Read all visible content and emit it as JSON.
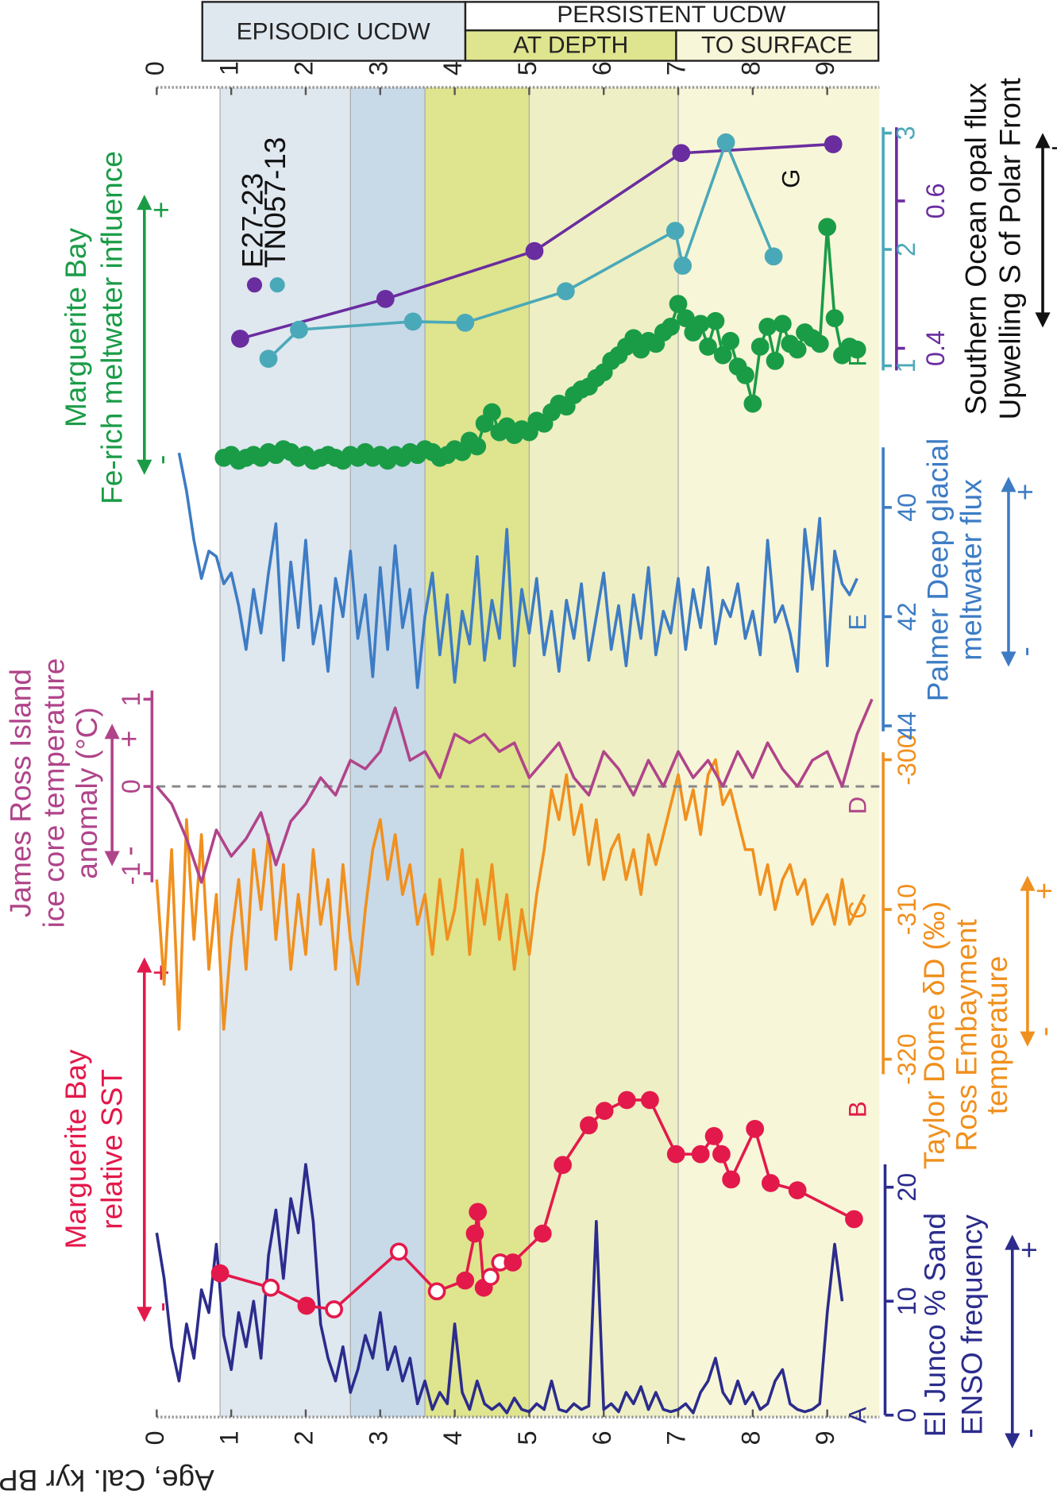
{
  "age_axis": {
    "label": "Age, Cal. kyr BP",
    "xlim": [
      0,
      9.7
    ],
    "xticks": [
      0,
      1,
      2,
      3,
      4,
      5,
      6,
      7,
      8,
      9
    ]
  },
  "header": {
    "episodic": "EPISODIC UCDW",
    "persistent": "PERSISTENT UCDW",
    "at_depth": "AT DEPTH",
    "to_surface": "TO SURFACE"
  },
  "phases": [
    {
      "start": 0.85,
      "end": 2.6,
      "color": "#dfe7ef"
    },
    {
      "start": 2.6,
      "end": 3.6,
      "color": "#c8d9e8"
    },
    {
      "start": 3.6,
      "end": 5.0,
      "color": "#dfe48e"
    },
    {
      "start": 5.0,
      "end": 7.0,
      "color": "#eeefc4"
    },
    {
      "start": 7.0,
      "end": 9.7,
      "color": "#f8f6d8"
    }
  ],
  "chart_data": [
    {
      "type": "line",
      "panel": "A",
      "ylabel": [
        "El Junco % Sand",
        "ENSO frequency"
      ],
      "signs": [
        "-",
        "+"
      ],
      "color": "#2b2c8c",
      "ylim": [
        0,
        22
      ],
      "yticks": [
        0,
        10,
        20
      ],
      "x": [
        0.0,
        0.1,
        0.2,
        0.3,
        0.4,
        0.5,
        0.6,
        0.7,
        0.8,
        0.9,
        1.0,
        1.1,
        1.2,
        1.3,
        1.4,
        1.5,
        1.6,
        1.7,
        1.8,
        1.9,
        2.0,
        2.1,
        2.2,
        2.3,
        2.4,
        2.5,
        2.6,
        2.7,
        2.8,
        2.9,
        3.0,
        3.1,
        3.2,
        3.3,
        3.4,
        3.5,
        3.6,
        3.7,
        3.8,
        3.9,
        4.0,
        4.1,
        4.2,
        4.3,
        4.4,
        4.5,
        4.6,
        4.7,
        4.8,
        4.9,
        5.0,
        5.1,
        5.2,
        5.3,
        5.4,
        5.5,
        5.6,
        5.7,
        5.8,
        5.9,
        6.0,
        6.1,
        6.2,
        6.3,
        6.4,
        6.5,
        6.6,
        6.7,
        6.8,
        6.9,
        7.0,
        7.1,
        7.2,
        7.3,
        7.4,
        7.5,
        7.6,
        7.7,
        7.8,
        7.9,
        8.0,
        8.1,
        8.2,
        8.3,
        8.4,
        8.5,
        8.6,
        8.7,
        8.8,
        8.9,
        9.0,
        9.1,
        9.2
      ],
      "values": [
        16,
        12,
        6,
        3,
        8,
        5,
        11,
        9,
        15,
        7,
        4,
        9,
        6,
        10,
        5,
        14,
        18,
        12,
        19,
        16,
        22,
        17,
        8,
        5,
        3,
        6,
        2,
        4,
        7,
        5,
        9,
        4,
        6,
        3,
        5,
        1,
        3,
        0.5,
        2,
        1,
        8,
        2,
        0.5,
        3,
        1,
        0.5,
        1,
        0.2,
        1.5,
        0.5,
        0.3,
        1,
        0.5,
        3,
        0.5,
        0.3,
        1,
        0.5,
        0.8,
        17,
        0.5,
        1,
        0.3,
        2,
        1,
        2.5,
        0.5,
        2,
        0.5,
        0.3,
        0.5,
        1,
        0.2,
        2,
        3,
        5,
        2,
        1,
        3,
        1,
        2,
        0.5,
        1,
        3,
        4,
        1,
        0.5,
        0.3,
        0.5,
        1,
        9,
        15,
        10
      ]
    },
    {
      "type": "line",
      "panel": "B",
      "ylabel": [
        "Marguerite Bay",
        "relative SST"
      ],
      "signs": [
        "-",
        "+"
      ],
      "color": "#e3194b",
      "markers": true,
      "ylim": [
        0,
        1
      ],
      "x": [
        0.85,
        1.53,
        2.01,
        2.38,
        3.25,
        3.76,
        4.14,
        4.27,
        4.31,
        4.39,
        4.48,
        4.61,
        4.78,
        5.18,
        5.45,
        5.8,
        6.01,
        6.31,
        6.62,
        6.97,
        7.3,
        7.48,
        7.58,
        7.71,
        8.03,
        8.24,
        8.6,
        9.36
      ],
      "values": [
        0.13,
        0.09,
        0.04,
        0.03,
        0.19,
        0.08,
        0.11,
        0.24,
        0.3,
        0.09,
        0.12,
        0.16,
        0.16,
        0.24,
        0.43,
        0.54,
        0.58,
        0.61,
        0.61,
        0.46,
        0.46,
        0.51,
        0.46,
        0.39,
        0.53,
        0.38,
        0.36,
        0.28
      ],
      "hollow": [
        false,
        true,
        false,
        true,
        true,
        true,
        false,
        false,
        false,
        false,
        true,
        true,
        false,
        false,
        false,
        false,
        false,
        false,
        false,
        false,
        false,
        false,
        false,
        false,
        false,
        false,
        false,
        false
      ]
    },
    {
      "type": "line",
      "panel": "C",
      "ylabel": [
        "Taylor Dome δD (‰)",
        "Ross Embayment",
        "temperature"
      ],
      "signs": [
        "-",
        "+"
      ],
      "color": "#f0901e",
      "ylim": [
        -321,
        -299.5
      ],
      "yticks": [
        -320,
        -310,
        -300
      ],
      "x": [
        0.0,
        0.1,
        0.2,
        0.3,
        0.4,
        0.5,
        0.6,
        0.7,
        0.8,
        0.9,
        1.0,
        1.1,
        1.2,
        1.3,
        1.4,
        1.5,
        1.6,
        1.7,
        1.8,
        1.9,
        2.0,
        2.1,
        2.2,
        2.3,
        2.4,
        2.5,
        2.6,
        2.7,
        2.8,
        2.9,
        3.0,
        3.1,
        3.2,
        3.3,
        3.4,
        3.5,
        3.6,
        3.7,
        3.8,
        3.9,
        4.0,
        4.1,
        4.2,
        4.3,
        4.4,
        4.5,
        4.6,
        4.7,
        4.8,
        4.9,
        5.0,
        5.1,
        5.2,
        5.3,
        5.4,
        5.5,
        5.6,
        5.7,
        5.8,
        5.9,
        6.0,
        6.1,
        6.2,
        6.3,
        6.4,
        6.5,
        6.6,
        6.7,
        6.8,
        6.9,
        7.0,
        7.1,
        7.2,
        7.3,
        7.4,
        7.5,
        7.6,
        7.7,
        7.8,
        7.9,
        8.0,
        8.1,
        8.2,
        8.3,
        8.4,
        8.5,
        8.6,
        8.7,
        8.8,
        8.9,
        9.0,
        9.1,
        9.2,
        9.3,
        9.4,
        9.5
      ],
      "values": [
        -308,
        -315,
        -306,
        -318,
        -304,
        -312,
        -305,
        -314,
        -309,
        -318,
        -312,
        -308,
        -314,
        -306,
        -310,
        -305,
        -312,
        -307,
        -314,
        -309,
        -313,
        -306,
        -311,
        -308,
        -314,
        -307,
        -312,
        -315,
        -310,
        -306,
        -304,
        -308,
        -305,
        -309,
        -307,
        -311,
        -309,
        -313,
        -308,
        -312,
        -310,
        -306,
        -313,
        -308,
        -311,
        -307,
        -312,
        -309,
        -314,
        -310,
        -313,
        -309,
        -306,
        -302,
        -304,
        -301,
        -305,
        -303,
        -307,
        -304,
        -308,
        -306,
        -305,
        -308,
        -306,
        -309,
        -305,
        -307,
        -305,
        -303,
        -301,
        -304,
        -302,
        -305,
        -301,
        -300,
        -303,
        -302,
        -304,
        -306,
        -306,
        -309,
        -307,
        -310,
        -308,
        -307,
        -309,
        -308,
        -311,
        -310,
        -309,
        -311,
        -308,
        -311,
        -310,
        -309
      ]
    },
    {
      "type": "line",
      "panel": "D",
      "ylabel": [
        "James Ross Island",
        "ice core temperature",
        "anomaly (°C)"
      ],
      "signs": [
        "-",
        "+"
      ],
      "color": "#b0448a",
      "ylim": [
        -1.1,
        1.1
      ],
      "yticks": [
        -1,
        0,
        1
      ],
      "zero_line": true,
      "x": [
        0.0,
        0.2,
        0.4,
        0.6,
        0.8,
        1.0,
        1.2,
        1.4,
        1.6,
        1.8,
        2.0,
        2.2,
        2.4,
        2.6,
        2.8,
        3.0,
        3.2,
        3.4,
        3.6,
        3.8,
        4.0,
        4.2,
        4.4,
        4.6,
        4.8,
        5.0,
        5.2,
        5.4,
        5.6,
        5.8,
        6.0,
        6.2,
        6.4,
        6.6,
        6.8,
        7.0,
        7.2,
        7.4,
        7.6,
        7.8,
        8.0,
        8.2,
        8.4,
        8.6,
        8.8,
        9.0,
        9.2,
        9.4,
        9.6
      ],
      "values": [
        0,
        -0.2,
        -0.6,
        -1.1,
        -0.5,
        -0.8,
        -0.6,
        -0.3,
        -0.9,
        -0.4,
        -0.2,
        0.1,
        -0.1,
        0.3,
        0.2,
        0.4,
        0.9,
        0.3,
        0.4,
        0.1,
        0.6,
        0.5,
        0.6,
        0.4,
        0.5,
        0.1,
        0.3,
        0.5,
        0.1,
        -0.1,
        0.4,
        0.2,
        -0.1,
        0.3,
        0,
        0.4,
        0.1,
        0.3,
        0,
        0.4,
        0.1,
        0.5,
        0.2,
        0,
        0.3,
        0.4,
        0,
        0.6,
        1.0
      ]
    },
    {
      "type": "line",
      "panel": "E",
      "ylabel": [
        "Palmer Deep glacial",
        "meltwater flux"
      ],
      "signs": [
        "-",
        "+"
      ],
      "color": "#3d7cc4",
      "ylim": [
        44.1,
        38.9
      ],
      "yticks": [
        40,
        42,
        44
      ],
      "x": [
        0.3,
        0.4,
        0.5,
        0.6,
        0.7,
        0.8,
        0.9,
        1.0,
        1.1,
        1.2,
        1.3,
        1.4,
        1.5,
        1.6,
        1.7,
        1.8,
        1.9,
        2.0,
        2.1,
        2.2,
        2.3,
        2.4,
        2.5,
        2.6,
        2.7,
        2.8,
        2.9,
        3.0,
        3.1,
        3.2,
        3.3,
        3.4,
        3.5,
        3.6,
        3.7,
        3.8,
        3.9,
        4.0,
        4.1,
        4.2,
        4.3,
        4.4,
        4.5,
        4.6,
        4.7,
        4.8,
        4.9,
        5.0,
        5.1,
        5.2,
        5.3,
        5.4,
        5.5,
        5.6,
        5.7,
        5.8,
        5.9,
        6.0,
        6.1,
        6.2,
        6.3,
        6.4,
        6.5,
        6.6,
        6.7,
        6.8,
        6.9,
        7.0,
        7.1,
        7.2,
        7.3,
        7.4,
        7.5,
        7.6,
        7.7,
        7.8,
        7.9,
        8.0,
        8.1,
        8.2,
        8.3,
        8.4,
        8.5,
        8.6,
        8.7,
        8.8,
        8.9,
        9.0,
        9.1,
        9.2,
        9.3,
        9.4
      ],
      "values": [
        39.0,
        39.7,
        40.6,
        41.3,
        40.8,
        40.9,
        41.4,
        41.2,
        41.8,
        42.6,
        41.5,
        42.3,
        41.2,
        40.3,
        42.8,
        41.0,
        42.2,
        40.6,
        42.5,
        41.8,
        43.0,
        41.3,
        42.0,
        40.8,
        42.4,
        41.6,
        43.1,
        41.1,
        42.6,
        40.7,
        42.2,
        41.5,
        43.3,
        42.0,
        41.2,
        42.7,
        41.6,
        43.2,
        41.9,
        42.5,
        40.9,
        42.8,
        41.7,
        42.4,
        40.4,
        42.9,
        41.5,
        42.3,
        41.3,
        42.7,
        41.9,
        43.0,
        41.7,
        42.4,
        41.4,
        42.8,
        42.0,
        41.2,
        42.6,
        41.8,
        42.9,
        41.6,
        42.4,
        41.1,
        42.7,
        41.9,
        42.3,
        41.3,
        42.6,
        41.5,
        42.2,
        41.1,
        42.5,
        41.7,
        42.0,
        41.4,
        42.4,
        41.9,
        42.7,
        40.6,
        42.1,
        41.8,
        42.3,
        43.0,
        40.4,
        41.5,
        40.2,
        42.9,
        40.8,
        41.4,
        41.6,
        41.3
      ]
    },
    {
      "type": "line",
      "panel": "F",
      "ylabel": [
        "Marguerite Bay",
        "Fe-rich meltwater influence"
      ],
      "signs": [
        "-",
        "+"
      ],
      "color": "#1a9c47",
      "markers": true,
      "ylim": [
        0,
        1
      ],
      "x": [
        0.9,
        1.0,
        1.1,
        1.2,
        1.3,
        1.4,
        1.5,
        1.6,
        1.7,
        1.8,
        1.9,
        2.0,
        2.1,
        2.2,
        2.3,
        2.4,
        2.5,
        2.6,
        2.7,
        2.8,
        2.9,
        3.0,
        3.1,
        3.2,
        3.3,
        3.4,
        3.5,
        3.6,
        3.7,
        3.8,
        3.9,
        4.0,
        4.1,
        4.2,
        4.3,
        4.4,
        4.5,
        4.6,
        4.7,
        4.8,
        4.9,
        5.0,
        5.1,
        5.2,
        5.3,
        5.4,
        5.5,
        5.6,
        5.7,
        5.8,
        5.9,
        6.0,
        6.1,
        6.2,
        6.3,
        6.4,
        6.5,
        6.6,
        6.7,
        6.8,
        6.9,
        7.0,
        7.1,
        7.2,
        7.3,
        7.4,
        7.5,
        7.6,
        7.7,
        7.8,
        7.9,
        8.0,
        8.1,
        8.2,
        8.3,
        8.4,
        8.5,
        8.6,
        8.7,
        8.8,
        8.9,
        9.0,
        9.1,
        9.2,
        9.3,
        9.4
      ],
      "values": [
        0.06,
        0.07,
        0.05,
        0.06,
        0.07,
        0.06,
        0.08,
        0.07,
        0.09,
        0.08,
        0.06,
        0.07,
        0.05,
        0.06,
        0.07,
        0.06,
        0.05,
        0.07,
        0.06,
        0.08,
        0.06,
        0.07,
        0.05,
        0.07,
        0.06,
        0.08,
        0.07,
        0.09,
        0.08,
        0.06,
        0.07,
        0.09,
        0.08,
        0.12,
        0.1,
        0.18,
        0.22,
        0.15,
        0.17,
        0.14,
        0.16,
        0.15,
        0.19,
        0.18,
        0.22,
        0.25,
        0.24,
        0.28,
        0.3,
        0.31,
        0.34,
        0.36,
        0.4,
        0.42,
        0.45,
        0.48,
        0.44,
        0.47,
        0.46,
        0.5,
        0.52,
        0.6,
        0.55,
        0.5,
        0.53,
        0.45,
        0.54,
        0.42,
        0.47,
        0.38,
        0.35,
        0.25,
        0.45,
        0.52,
        0.4,
        0.53,
        0.46,
        0.44,
        0.5,
        0.48,
        0.46,
        0.87,
        0.55,
        0.42,
        0.45,
        0.44
      ]
    },
    {
      "type": "line",
      "panel": "G",
      "ylabel": [
        "Southern Ocean opal flux",
        "Upwelling S of Polar Front"
      ],
      "signs": [
        "-",
        "+"
      ],
      "color": "#111111",
      "markers": true,
      "ylim": [
        0.37,
        0.7
      ],
      "yticks": [
        0.4,
        0.6
      ],
      "y2lim": [
        0.96,
        3.05
      ],
      "y2ticks": [
        1,
        2,
        3
      ],
      "series": [
        {
          "name": "E27-23",
          "color": "#6a2d9f",
          "x": [
            1.12,
            3.07,
            5.07,
            7.04,
            9.08
          ],
          "values": [
            0.413,
            0.467,
            0.532,
            0.665,
            0.677
          ]
        },
        {
          "name": "TN057-13",
          "color": "#4aa9b8",
          "axis": "y2",
          "x": [
            1.5,
            1.91,
            3.44,
            4.14,
            5.49,
            6.96,
            7.06,
            7.64,
            8.28
          ],
          "values": [
            1.06,
            1.31,
            1.38,
            1.37,
            1.64,
            2.16,
            1.86,
            2.92,
            1.94
          ]
        }
      ]
    }
  ]
}
